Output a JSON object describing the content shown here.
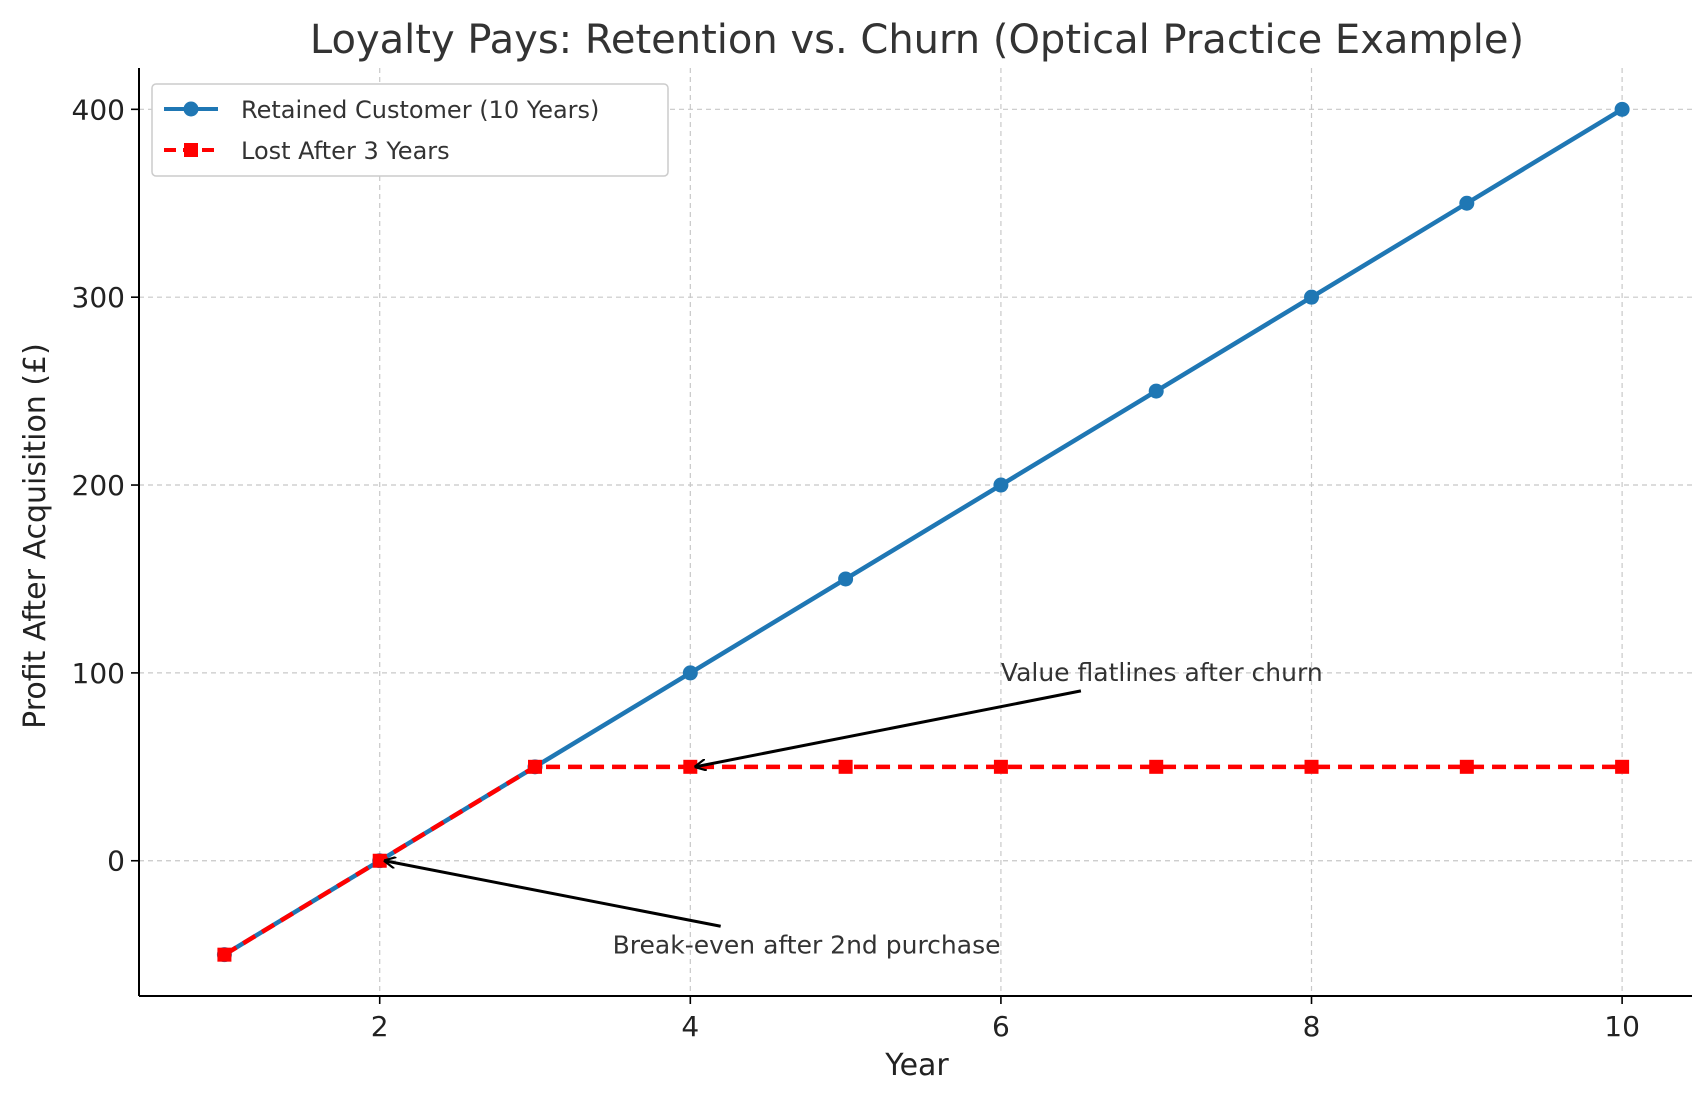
{
  "chart_data": {
    "type": "line",
    "title": "Loyalty Pays: Retention vs. Churn (Optical Practice Example)",
    "xlabel": "Year",
    "ylabel": "Profit After Acquisition (£)",
    "xlim": [
      0.45,
      10.45
    ],
    "ylim": [
      -72,
      422
    ],
    "xticks": [
      2,
      4,
      6,
      8,
      10
    ],
    "yticks": [
      0,
      100,
      200,
      300,
      400
    ],
    "grid": true,
    "legend_position": "upper-left",
    "series": [
      {
        "name": "Retained Customer (10 Years)",
        "color": "#1f77b4",
        "marker": "circle",
        "linestyle": "solid",
        "x": [
          1,
          2,
          3,
          4,
          5,
          6,
          7,
          8,
          9,
          10
        ],
        "y": [
          -50,
          0,
          50,
          100,
          150,
          200,
          250,
          300,
          350,
          400
        ]
      },
      {
        "name": "Lost After 3 Years",
        "color": "#ff0000",
        "marker": "square",
        "linestyle": "dashed",
        "x": [
          1,
          2,
          3,
          4,
          5,
          6,
          7,
          8,
          9,
          10
        ],
        "y": [
          -50,
          0,
          50,
          50,
          50,
          50,
          50,
          50,
          50,
          50
        ]
      }
    ],
    "annotations": [
      {
        "text": "Value flatlines after churn",
        "point": [
          4,
          50
        ],
        "text_at": [
          6,
          100
        ]
      },
      {
        "text": "Break-even after 2nd purchase",
        "point": [
          2,
          0
        ],
        "text_at": [
          3.5,
          -45
        ]
      }
    ]
  }
}
